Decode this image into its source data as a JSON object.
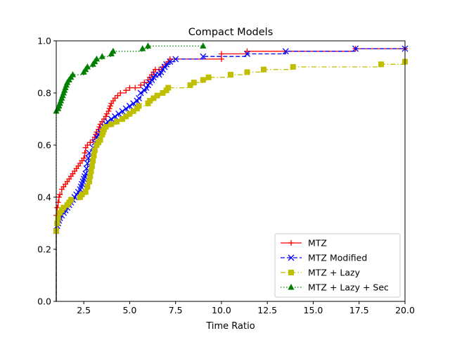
{
  "chart_data": {
    "type": "line",
    "title": "Compact Models",
    "xlabel": "Time Ratio",
    "ylabel": "",
    "xlim": [
      1.0,
      20.0
    ],
    "ylim": [
      0.0,
      1.0
    ],
    "xticks": [
      2.5,
      5.0,
      7.5,
      10.0,
      12.5,
      15.0,
      17.5,
      20.0
    ],
    "xtick_labels": [
      "2.5",
      "5.0",
      "7.5",
      "10.0",
      "12.5",
      "15.0",
      "17.5",
      "20.0"
    ],
    "yticks": [
      0.0,
      0.2,
      0.4,
      0.6,
      0.8,
      1.0
    ],
    "ytick_labels": [
      "0.0",
      "0.2",
      "0.4",
      "0.6",
      "0.8",
      "1.0"
    ],
    "grid": false,
    "legend_position": "lower-right",
    "step": "post",
    "series": [
      {
        "name": "MTZ",
        "color": "#ff0000",
        "line_style": "solid",
        "marker": "plus",
        "points": [
          [
            1.0,
            0.0
          ],
          [
            1.0,
            0.33
          ],
          [
            1.05,
            0.36
          ],
          [
            1.1,
            0.38
          ],
          [
            1.15,
            0.4
          ],
          [
            1.2,
            0.41
          ],
          [
            1.3,
            0.43
          ],
          [
            1.4,
            0.44
          ],
          [
            1.5,
            0.45
          ],
          [
            1.6,
            0.46
          ],
          [
            1.7,
            0.47
          ],
          [
            1.8,
            0.48
          ],
          [
            1.9,
            0.49
          ],
          [
            2.0,
            0.5
          ],
          [
            2.1,
            0.51
          ],
          [
            2.2,
            0.52
          ],
          [
            2.3,
            0.53
          ],
          [
            2.4,
            0.54
          ],
          [
            2.5,
            0.55
          ],
          [
            2.55,
            0.57
          ],
          [
            2.6,
            0.59
          ],
          [
            2.7,
            0.6
          ],
          [
            2.85,
            0.61
          ],
          [
            3.0,
            0.62
          ],
          [
            3.1,
            0.63
          ],
          [
            3.15,
            0.64
          ],
          [
            3.2,
            0.65
          ],
          [
            3.3,
            0.66
          ],
          [
            3.35,
            0.67
          ],
          [
            3.4,
            0.68
          ],
          [
            3.5,
            0.69
          ],
          [
            3.6,
            0.7
          ],
          [
            3.7,
            0.71
          ],
          [
            3.75,
            0.72
          ],
          [
            3.85,
            0.73
          ],
          [
            3.9,
            0.74
          ],
          [
            3.95,
            0.75
          ],
          [
            4.0,
            0.76
          ],
          [
            4.1,
            0.77
          ],
          [
            4.2,
            0.78
          ],
          [
            4.35,
            0.79
          ],
          [
            4.5,
            0.8
          ],
          [
            4.8,
            0.81
          ],
          [
            5.0,
            0.82
          ],
          [
            5.3,
            0.82
          ],
          [
            5.6,
            0.83
          ],
          [
            5.8,
            0.84
          ],
          [
            6.0,
            0.85
          ],
          [
            6.1,
            0.86
          ],
          [
            6.2,
            0.87
          ],
          [
            6.3,
            0.88
          ],
          [
            6.4,
            0.89
          ],
          [
            6.6,
            0.89
          ],
          [
            6.8,
            0.9
          ],
          [
            7.0,
            0.91
          ],
          [
            7.1,
            0.92
          ],
          [
            7.2,
            0.93
          ],
          [
            10.0,
            0.93
          ],
          [
            10.0,
            0.95
          ],
          [
            11.4,
            0.96
          ],
          [
            17.3,
            0.97
          ],
          [
            20.0,
            0.97
          ]
        ]
      },
      {
        "name": "MTZ Modified",
        "color": "#0000ff",
        "line_style": "dashed",
        "marker": "x",
        "points": [
          [
            1.0,
            0.0
          ],
          [
            1.0,
            0.27
          ],
          [
            1.05,
            0.29
          ],
          [
            1.1,
            0.3
          ],
          [
            1.15,
            0.31
          ],
          [
            1.2,
            0.32
          ],
          [
            1.3,
            0.33
          ],
          [
            1.4,
            0.34
          ],
          [
            1.5,
            0.35
          ],
          [
            1.6,
            0.36
          ],
          [
            1.7,
            0.37
          ],
          [
            1.8,
            0.38
          ],
          [
            1.9,
            0.39
          ],
          [
            2.0,
            0.4
          ],
          [
            2.1,
            0.41
          ],
          [
            2.2,
            0.42
          ],
          [
            2.3,
            0.43
          ],
          [
            2.35,
            0.44
          ],
          [
            2.4,
            0.45
          ],
          [
            2.45,
            0.46
          ],
          [
            2.5,
            0.47
          ],
          [
            2.55,
            0.48
          ],
          [
            2.6,
            0.49
          ],
          [
            2.65,
            0.51
          ],
          [
            2.7,
            0.53
          ],
          [
            2.75,
            0.55
          ],
          [
            2.8,
            0.57
          ],
          [
            3.0,
            0.59
          ],
          [
            3.1,
            0.61
          ],
          [
            3.2,
            0.63
          ],
          [
            3.3,
            0.64
          ],
          [
            3.4,
            0.65
          ],
          [
            3.5,
            0.66
          ],
          [
            3.6,
            0.67
          ],
          [
            3.7,
            0.68
          ],
          [
            3.8,
            0.69
          ],
          [
            4.0,
            0.7
          ],
          [
            4.2,
            0.71
          ],
          [
            4.4,
            0.72
          ],
          [
            4.6,
            0.73
          ],
          [
            4.8,
            0.74
          ],
          [
            5.0,
            0.75
          ],
          [
            5.2,
            0.76
          ],
          [
            5.4,
            0.77
          ],
          [
            5.5,
            0.78
          ],
          [
            5.6,
            0.8
          ],
          [
            5.8,
            0.81
          ],
          [
            5.9,
            0.82
          ],
          [
            6.0,
            0.83
          ],
          [
            6.1,
            0.84
          ],
          [
            6.2,
            0.85
          ],
          [
            6.3,
            0.86
          ],
          [
            6.4,
            0.87
          ],
          [
            6.6,
            0.87
          ],
          [
            6.7,
            0.88
          ],
          [
            6.8,
            0.89
          ],
          [
            6.9,
            0.9
          ],
          [
            7.0,
            0.91
          ],
          [
            7.2,
            0.92
          ],
          [
            7.5,
            0.93
          ],
          [
            9.0,
            0.94
          ],
          [
            11.4,
            0.95
          ],
          [
            13.5,
            0.96
          ],
          [
            17.3,
            0.97
          ],
          [
            20.0,
            0.97
          ]
        ]
      },
      {
        "name": "MTZ + Lazy",
        "color": "#bfbf00",
        "line_style": "dashdot",
        "marker": "square",
        "points": [
          [
            1.0,
            0.0
          ],
          [
            1.0,
            0.27
          ],
          [
            1.05,
            0.3
          ],
          [
            1.1,
            0.32
          ],
          [
            1.2,
            0.34
          ],
          [
            1.3,
            0.35
          ],
          [
            1.4,
            0.36
          ],
          [
            1.6,
            0.37
          ],
          [
            1.7,
            0.38
          ],
          [
            1.8,
            0.39
          ],
          [
            2.3,
            0.4
          ],
          [
            2.4,
            0.41
          ],
          [
            2.6,
            0.42
          ],
          [
            2.7,
            0.44
          ],
          [
            2.8,
            0.46
          ],
          [
            2.85,
            0.48
          ],
          [
            2.9,
            0.5
          ],
          [
            2.95,
            0.52
          ],
          [
            3.0,
            0.54
          ],
          [
            3.05,
            0.56
          ],
          [
            3.1,
            0.58
          ],
          [
            3.2,
            0.6
          ],
          [
            3.3,
            0.61
          ],
          [
            3.4,
            0.62
          ],
          [
            3.5,
            0.64
          ],
          [
            3.55,
            0.65
          ],
          [
            3.6,
            0.66
          ],
          [
            3.7,
            0.67
          ],
          [
            4.0,
            0.68
          ],
          [
            4.3,
            0.69
          ],
          [
            4.6,
            0.7
          ],
          [
            4.8,
            0.71
          ],
          [
            5.0,
            0.72
          ],
          [
            5.2,
            0.73
          ],
          [
            5.4,
            0.74
          ],
          [
            5.5,
            0.75
          ],
          [
            6.0,
            0.76
          ],
          [
            6.1,
            0.77
          ],
          [
            6.3,
            0.78
          ],
          [
            6.5,
            0.79
          ],
          [
            6.8,
            0.8
          ],
          [
            7.0,
            0.81
          ],
          [
            7.1,
            0.82
          ],
          [
            8.3,
            0.83
          ],
          [
            8.5,
            0.84
          ],
          [
            9.0,
            0.85
          ],
          [
            9.3,
            0.86
          ],
          [
            10.5,
            0.87
          ],
          [
            11.4,
            0.88
          ],
          [
            12.3,
            0.89
          ],
          [
            13.9,
            0.9
          ],
          [
            18.7,
            0.91
          ],
          [
            20.0,
            0.92
          ]
        ]
      },
      {
        "name": "MTZ + Lazy + Sec",
        "color": "#008000",
        "line_style": "dotted",
        "marker": "triangle",
        "points": [
          [
            1.0,
            0.0
          ],
          [
            1.0,
            0.73
          ],
          [
            1.1,
            0.74
          ],
          [
            1.15,
            0.75
          ],
          [
            1.2,
            0.76
          ],
          [
            1.25,
            0.77
          ],
          [
            1.3,
            0.78
          ],
          [
            1.35,
            0.79
          ],
          [
            1.4,
            0.8
          ],
          [
            1.45,
            0.81
          ],
          [
            1.5,
            0.82
          ],
          [
            1.55,
            0.83
          ],
          [
            1.6,
            0.84
          ],
          [
            1.7,
            0.85
          ],
          [
            1.8,
            0.86
          ],
          [
            1.9,
            0.87
          ],
          [
            2.5,
            0.88
          ],
          [
            2.6,
            0.89
          ],
          [
            2.7,
            0.9
          ],
          [
            3.0,
            0.91
          ],
          [
            3.1,
            0.92
          ],
          [
            3.2,
            0.93
          ],
          [
            3.5,
            0.94
          ],
          [
            4.0,
            0.95
          ],
          [
            4.1,
            0.96
          ],
          [
            5.7,
            0.97
          ],
          [
            6.0,
            0.98
          ],
          [
            9.0,
            0.98
          ]
        ]
      }
    ]
  }
}
